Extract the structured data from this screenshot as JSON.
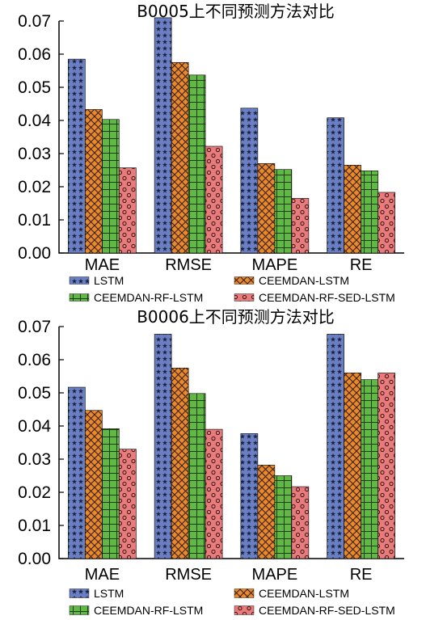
{
  "chart_data": [
    {
      "type": "bar",
      "title": "B0005上不同预测方法对比",
      "categories": [
        "MAE",
        "RMSE",
        "MAPE",
        "RE"
      ],
      "ylim": [
        0,
        0.07
      ],
      "yticks": [
        "0.00",
        "0.01",
        "0.02",
        "0.03",
        "0.04",
        "0.05",
        "0.06",
        "0.07"
      ],
      "series": [
        {
          "name": "LSTM",
          "values": [
            0.0585,
            0.071,
            0.0437,
            0.0408
          ]
        },
        {
          "name": "CEEMDAN-LSTM",
          "values": [
            0.0433,
            0.0575,
            0.027,
            0.0265
          ]
        },
        {
          "name": "CEEMDAN-RF-LSTM",
          "values": [
            0.0403,
            0.0537,
            0.0252,
            0.0248
          ]
        },
        {
          "name": "CEEMDAN-RF-SED-LSTM",
          "values": [
            0.0257,
            0.0322,
            0.0165,
            0.0183
          ]
        }
      ],
      "grid": false,
      "legend": "bottom"
    },
    {
      "type": "bar",
      "title": "B0006上不同预测方法对比",
      "categories": [
        "MAE",
        "RMSE",
        "MAPE",
        "RE"
      ],
      "ylim": [
        0,
        0.07
      ],
      "yticks": [
        "0.00",
        "0.01",
        "0.02",
        "0.03",
        "0.04",
        "0.05",
        "0.06",
        "0.07"
      ],
      "series": [
        {
          "name": "LSTM",
          "values": [
            0.0517,
            0.0677,
            0.0377,
            0.0677
          ]
        },
        {
          "name": "CEEMDAN-LSTM",
          "values": [
            0.0447,
            0.0575,
            0.0282,
            0.056
          ]
        },
        {
          "name": "CEEMDAN-RF-LSTM",
          "values": [
            0.0392,
            0.0498,
            0.025,
            0.054
          ]
        },
        {
          "name": "CEEMDAN-RF-SED-LSTM",
          "values": [
            0.033,
            0.039,
            0.0217,
            0.056
          ]
        }
      ],
      "grid": false,
      "legend": "bottom"
    }
  ],
  "colors": {
    "LSTM": "#6a7fc4",
    "CEEMDAN-LSTM": "#e8892e",
    "CEEMDAN-RF-LSTM": "#62b845",
    "CEEMDAN-RF-SED-LSTM": "#e87b7b"
  }
}
